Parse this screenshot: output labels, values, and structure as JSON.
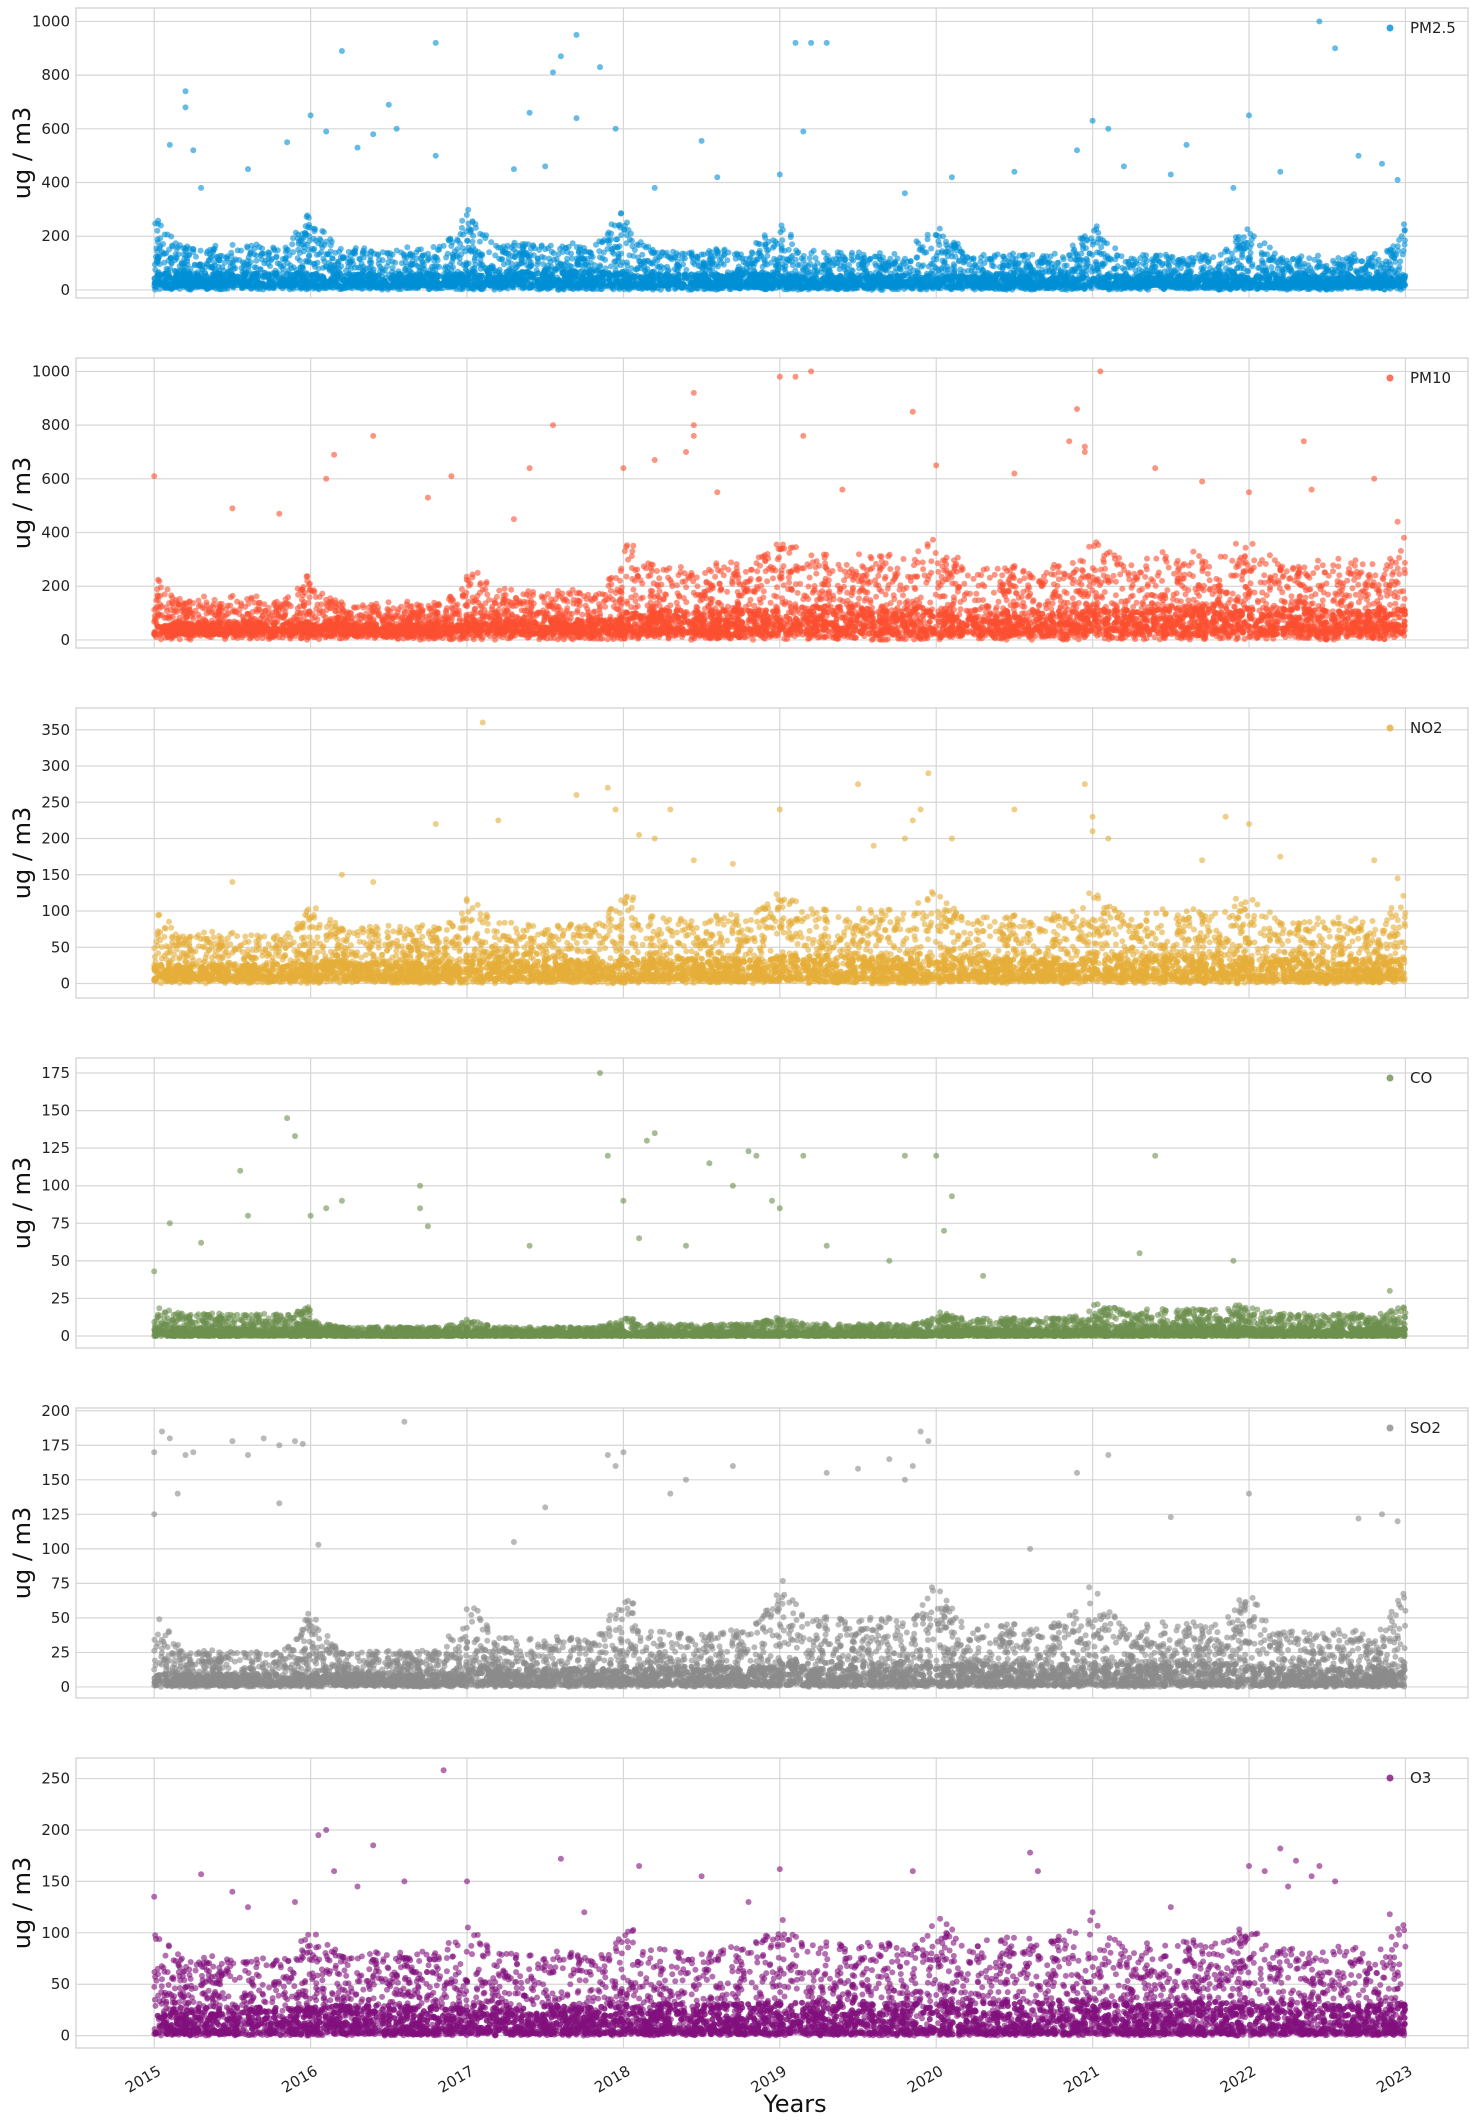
{
  "chart_data": {
    "type": "scatter",
    "xlabel": "Years",
    "x_tick_labels": [
      "2015",
      "2016",
      "2017",
      "2018",
      "2019",
      "2020",
      "2021",
      "2022",
      "2023"
    ],
    "xlim": [
      2014.5,
      2023.4
    ],
    "grid": true,
    "legend_position": "top-right",
    "point_opacity": 0.6,
    "panels": [
      {
        "series_name": "PM2.5",
        "color": "#008fd5",
        "ylabel": "ug / m3",
        "ylim": [
          -30,
          1050
        ],
        "yticks": [
          0,
          200,
          400,
          600,
          800,
          1000
        ],
        "baseline_low": 20,
        "baseline_high": [
          155,
          145,
          165,
          140,
          130,
          125,
          120,
          115,
          110
        ],
        "seasonal_peak": 250,
        "outliers": [
          [
            2015.2,
            740
          ],
          [
            2015.2,
            680
          ],
          [
            2015.25,
            520
          ],
          [
            2015.1,
            540
          ],
          [
            2015.6,
            450
          ],
          [
            2015.85,
            550
          ],
          [
            2016.0,
            650
          ],
          [
            2016.1,
            590
          ],
          [
            2016.2,
            890
          ],
          [
            2016.5,
            690
          ],
          [
            2016.55,
            600
          ],
          [
            2016.8,
            500
          ],
          [
            2016.8,
            920
          ],
          [
            2017.3,
            450
          ],
          [
            2017.4,
            660
          ],
          [
            2017.5,
            460
          ],
          [
            2017.55,
            810
          ],
          [
            2017.6,
            870
          ],
          [
            2017.7,
            950
          ],
          [
            2017.85,
            830
          ],
          [
            2017.7,
            640
          ],
          [
            2017.95,
            600
          ],
          [
            2018.5,
            555
          ],
          [
            2018.6,
            420
          ],
          [
            2019.1,
            920
          ],
          [
            2019.2,
            920
          ],
          [
            2019.3,
            920
          ],
          [
            2019.15,
            590
          ],
          [
            2019.0,
            430
          ],
          [
            2020.1,
            420
          ],
          [
            2020.5,
            440
          ],
          [
            2020.9,
            520
          ],
          [
            2021.0,
            630
          ],
          [
            2021.1,
            600
          ],
          [
            2021.2,
            460
          ],
          [
            2021.5,
            430
          ],
          [
            2021.6,
            540
          ],
          [
            2022.0,
            650
          ],
          [
            2022.2,
            440
          ],
          [
            2022.45,
            1000
          ],
          [
            2022.55,
            900
          ],
          [
            2022.7,
            500
          ],
          [
            2022.85,
            470
          ],
          [
            2022.95,
            410
          ],
          [
            2015.3,
            380
          ],
          [
            2016.3,
            530
          ],
          [
            2016.4,
            580
          ],
          [
            2018.2,
            380
          ],
          [
            2019.8,
            360
          ],
          [
            2021.9,
            380
          ]
        ]
      },
      {
        "series_name": "PM10",
        "color": "#fc4f30",
        "ylabel": "ug / m3",
        "ylim": [
          -30,
          1050
        ],
        "yticks": [
          0,
          200,
          400,
          600,
          800,
          1000
        ],
        "baseline_low": 40,
        "baseline_high": [
          130,
          110,
          160,
          260,
          300,
          250,
          290,
          270,
          250
        ],
        "seasonal_peak": 180,
        "outliers": [
          [
            2015.0,
            610
          ],
          [
            2016.1,
            600
          ],
          [
            2016.15,
            690
          ],
          [
            2016.4,
            760
          ],
          [
            2016.9,
            610
          ],
          [
            2017.3,
            450
          ],
          [
            2017.4,
            640
          ],
          [
            2017.55,
            800
          ],
          [
            2018.0,
            640
          ],
          [
            2018.2,
            670
          ],
          [
            2018.4,
            700
          ],
          [
            2018.45,
            920
          ],
          [
            2018.45,
            800
          ],
          [
            2018.45,
            760
          ],
          [
            2018.6,
            550
          ],
          [
            2019.0,
            980
          ],
          [
            2019.1,
            980
          ],
          [
            2019.2,
            1000
          ],
          [
            2019.15,
            760
          ],
          [
            2019.4,
            560
          ],
          [
            2019.85,
            850
          ],
          [
            2020.0,
            650
          ],
          [
            2020.5,
            620
          ],
          [
            2020.9,
            860
          ],
          [
            2020.85,
            740
          ],
          [
            2020.95,
            700
          ],
          [
            2020.95,
            720
          ],
          [
            2021.05,
            1000
          ],
          [
            2021.4,
            640
          ],
          [
            2021.7,
            590
          ],
          [
            2022.0,
            550
          ],
          [
            2022.35,
            740
          ],
          [
            2022.4,
            560
          ],
          [
            2022.8,
            600
          ],
          [
            2022.95,
            440
          ],
          [
            2015.5,
            490
          ],
          [
            2015.8,
            470
          ],
          [
            2016.75,
            530
          ]
        ]
      },
      {
        "series_name": "NO2",
        "color": "#e5ae38",
        "ylabel": "ug / m3",
        "ylim": [
          -20,
          380
        ],
        "yticks": [
          0,
          50,
          100,
          150,
          200,
          250,
          300,
          350
        ],
        "baseline_low": 8,
        "baseline_high": [
          65,
          75,
          80,
          90,
          100,
          90,
          95,
          85,
          85
        ],
        "seasonal_peak": 70,
        "outliers": [
          [
            2015.5,
            140
          ],
          [
            2016.4,
            140
          ],
          [
            2016.8,
            220
          ],
          [
            2017.1,
            360
          ],
          [
            2017.2,
            225
          ],
          [
            2017.7,
            260
          ],
          [
            2017.9,
            270
          ],
          [
            2017.95,
            240
          ],
          [
            2018.1,
            205
          ],
          [
            2018.2,
            200
          ],
          [
            2018.3,
            240
          ],
          [
            2018.7,
            165
          ],
          [
            2019.0,
            240
          ],
          [
            2019.5,
            275
          ],
          [
            2019.8,
            200
          ],
          [
            2019.85,
            225
          ],
          [
            2019.9,
            240
          ],
          [
            2019.95,
            290
          ],
          [
            2020.1,
            200
          ],
          [
            2020.5,
            240
          ],
          [
            2020.95,
            275
          ],
          [
            2021.0,
            230
          ],
          [
            2021.0,
            210
          ],
          [
            2021.1,
            200
          ],
          [
            2021.7,
            170
          ],
          [
            2021.85,
            230
          ],
          [
            2022.0,
            220
          ],
          [
            2022.2,
            175
          ],
          [
            2022.8,
            170
          ],
          [
            2022.95,
            145
          ],
          [
            2016.2,
            150
          ],
          [
            2018.45,
            170
          ],
          [
            2019.6,
            190
          ]
        ]
      },
      {
        "series_name": "CO",
        "color": "#6d904f",
        "ylabel": "ug / m3",
        "ylim": [
          -8,
          185
        ],
        "yticks": [
          0,
          25,
          50,
          75,
          100,
          125,
          150,
          175
        ],
        "baseline_low": 0,
        "baseline_high": [
          15,
          6,
          6,
          8,
          8,
          12,
          18,
          15,
          12
        ],
        "seasonal_peak": 10,
        "outliers": [
          [
            2015.0,
            43
          ],
          [
            2015.1,
            75
          ],
          [
            2015.3,
            62
          ],
          [
            2015.55,
            110
          ],
          [
            2015.6,
            80
          ],
          [
            2015.85,
            145
          ],
          [
            2015.9,
            133
          ],
          [
            2016.0,
            80
          ],
          [
            2016.1,
            85
          ],
          [
            2016.2,
            90
          ],
          [
            2016.7,
            100
          ],
          [
            2016.75,
            73
          ],
          [
            2016.7,
            85
          ],
          [
            2017.4,
            60
          ],
          [
            2017.85,
            175
          ],
          [
            2017.9,
            120
          ],
          [
            2018.0,
            90
          ],
          [
            2018.1,
            65
          ],
          [
            2018.15,
            130
          ],
          [
            2018.2,
            135
          ],
          [
            2018.55,
            115
          ],
          [
            2018.7,
            100
          ],
          [
            2018.8,
            123
          ],
          [
            2018.85,
            120
          ],
          [
            2018.95,
            90
          ],
          [
            2019.0,
            85
          ],
          [
            2019.15,
            120
          ],
          [
            2019.8,
            120
          ],
          [
            2020.0,
            120
          ],
          [
            2020.1,
            93
          ],
          [
            2020.05,
            70
          ],
          [
            2021.4,
            120
          ],
          [
            2021.9,
            50
          ],
          [
            2022.9,
            30
          ],
          [
            2018.4,
            60
          ],
          [
            2019.3,
            60
          ],
          [
            2019.7,
            50
          ],
          [
            2020.3,
            40
          ],
          [
            2021.3,
            55
          ]
        ]
      },
      {
        "series_name": "SO2",
        "color": "#8b8b8b",
        "ylabel": "ug / m3",
        "ylim": [
          -8,
          202
        ],
        "yticks": [
          0,
          25,
          50,
          75,
          100,
          125,
          150,
          175,
          200
        ],
        "baseline_low": 2,
        "baseline_high": [
          25,
          25,
          35,
          40,
          50,
          45,
          45,
          40,
          40
        ],
        "seasonal_peak": 60,
        "outliers": [
          [
            2015.0,
            170
          ],
          [
            2015.05,
            185
          ],
          [
            2015.1,
            180
          ],
          [
            2015.2,
            168
          ],
          [
            2015.25,
            170
          ],
          [
            2015.5,
            178
          ],
          [
            2015.6,
            168
          ],
          [
            2015.7,
            180
          ],
          [
            2015.8,
            175
          ],
          [
            2015.9,
            178
          ],
          [
            2015.95,
            176
          ],
          [
            2015.8,
            133
          ],
          [
            2015.15,
            140
          ],
          [
            2015.0,
            125
          ],
          [
            2016.6,
            192
          ],
          [
            2017.5,
            130
          ],
          [
            2017.9,
            168
          ],
          [
            2017.95,
            160
          ],
          [
            2018.0,
            170
          ],
          [
            2018.4,
            150
          ],
          [
            2018.7,
            160
          ],
          [
            2019.3,
            155
          ],
          [
            2019.5,
            158
          ],
          [
            2019.7,
            165
          ],
          [
            2019.8,
            150
          ],
          [
            2019.85,
            160
          ],
          [
            2019.9,
            185
          ],
          [
            2019.95,
            178
          ],
          [
            2020.9,
            155
          ],
          [
            2021.1,
            168
          ],
          [
            2021.5,
            123
          ],
          [
            2022.0,
            140
          ],
          [
            2022.7,
            122
          ],
          [
            2022.85,
            125
          ],
          [
            2022.95,
            120
          ],
          [
            2016.05,
            103
          ],
          [
            2017.3,
            105
          ],
          [
            2018.3,
            140
          ],
          [
            2020.6,
            100
          ]
        ]
      },
      {
        "series_name": "O3",
        "color": "#810f7c",
        "ylabel": "ug / m3",
        "ylim": [
          -12,
          270
        ],
        "yticks": [
          0,
          50,
          100,
          150,
          200,
          250
        ],
        "baseline_low": 3,
        "baseline_high": [
          75,
          80,
          80,
          85,
          90,
          95,
          90,
          85,
          70
        ],
        "seasonal_peak": 50,
        "outliers": [
          [
            2015.0,
            135
          ],
          [
            2015.3,
            157
          ],
          [
            2015.5,
            140
          ],
          [
            2015.9,
            130
          ],
          [
            2016.05,
            195
          ],
          [
            2016.1,
            200
          ],
          [
            2016.15,
            160
          ],
          [
            2016.4,
            185
          ],
          [
            2016.6,
            150
          ],
          [
            2016.85,
            258
          ],
          [
            2017.0,
            150
          ],
          [
            2017.6,
            172
          ],
          [
            2017.75,
            120
          ],
          [
            2018.1,
            165
          ],
          [
            2018.5,
            155
          ],
          [
            2019.0,
            162
          ],
          [
            2019.85,
            160
          ],
          [
            2020.6,
            178
          ],
          [
            2020.65,
            160
          ],
          [
            2021.0,
            120
          ],
          [
            2022.0,
            165
          ],
          [
            2022.1,
            160
          ],
          [
            2022.2,
            182
          ],
          [
            2022.25,
            145
          ],
          [
            2022.3,
            170
          ],
          [
            2022.4,
            155
          ],
          [
            2022.45,
            165
          ],
          [
            2022.55,
            150
          ],
          [
            2022.9,
            118
          ],
          [
            2015.6,
            125
          ],
          [
            2016.3,
            145
          ],
          [
            2018.8,
            130
          ],
          [
            2021.5,
            125
          ]
        ]
      }
    ]
  }
}
